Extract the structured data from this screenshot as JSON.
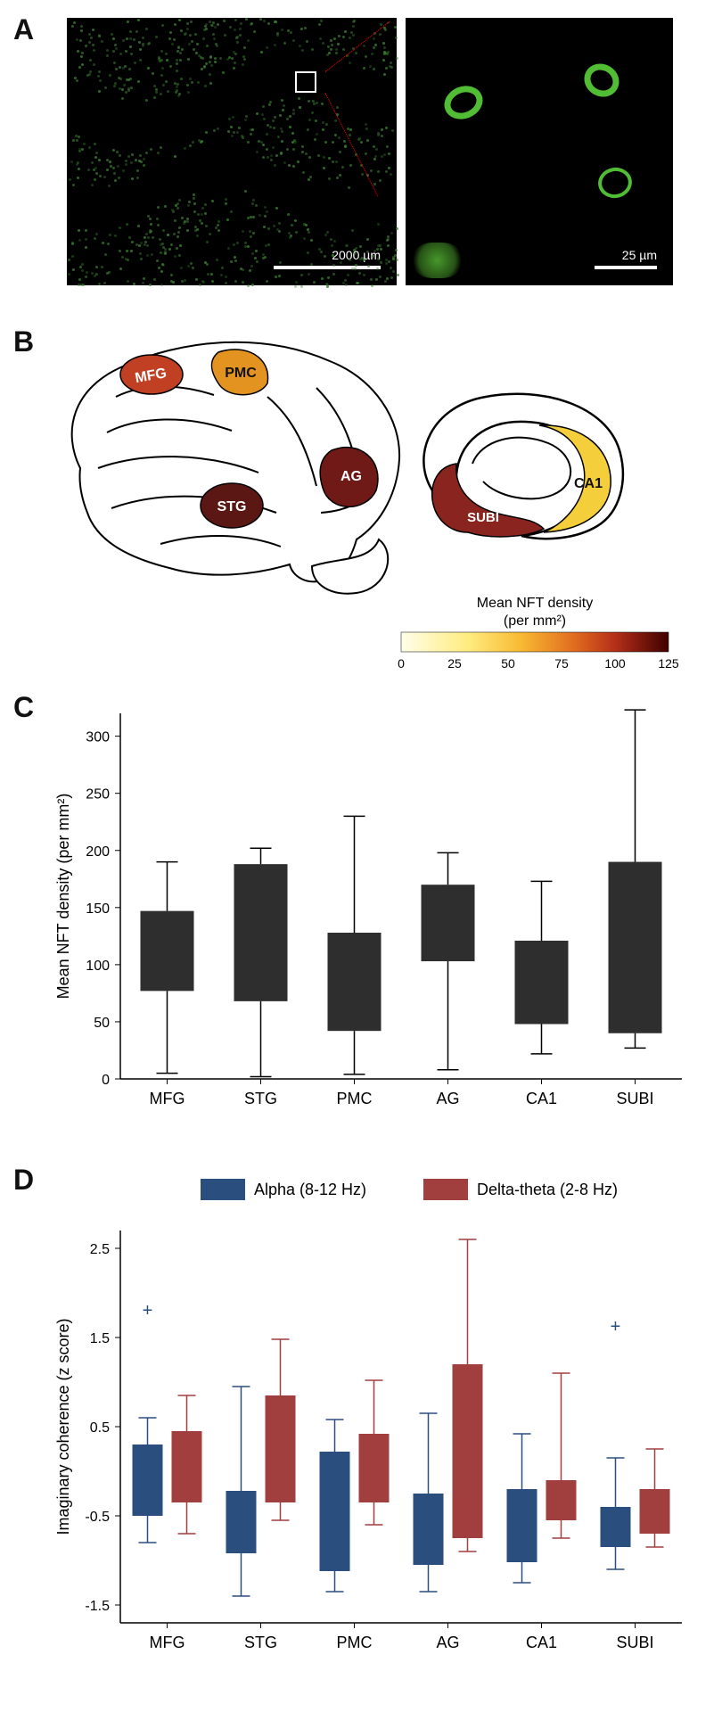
{
  "panelA": {
    "label": "A",
    "micro1_scalebar": "2000 µm",
    "micro2_scalebar": "25 µm",
    "bg_color": "#000000",
    "signal_color": "#59d23a"
  },
  "panelB": {
    "label": "B",
    "regions": [
      {
        "id": "MFG",
        "value": 95,
        "color": "#c14023"
      },
      {
        "id": "PMC",
        "value": 75,
        "color": "#e39420"
      },
      {
        "id": "STG",
        "value": 120,
        "color": "#5a1713"
      },
      {
        "id": "AG",
        "value": 118,
        "color": "#6f1a17"
      },
      {
        "id": "SUBI",
        "value": 110,
        "color": "#8a241f"
      },
      {
        "id": "CA1",
        "value": 60,
        "color": "#f4cf3b"
      }
    ],
    "colorbar": {
      "title": "Mean NFT density (per mm²)",
      "ticks": [
        0,
        25,
        50,
        75,
        100,
        125
      ],
      "stops": [
        {
          "pct": 0,
          "color": "#fffee9"
        },
        {
          "pct": 25,
          "color": "#feec80"
        },
        {
          "pct": 45,
          "color": "#f8b932"
        },
        {
          "pct": 65,
          "color": "#e06b1e"
        },
        {
          "pct": 80,
          "color": "#b52f19"
        },
        {
          "pct": 100,
          "color": "#3f0000"
        }
      ]
    }
  },
  "panelC": {
    "label": "C",
    "ytitle": "Mean NFT density (per mm²)",
    "ylim": [
      0,
      320
    ],
    "ytick_step": 50,
    "categories": [
      "MFG",
      "STG",
      "PMC",
      "AG",
      "CA1",
      "SUBI"
    ],
    "boxes": [
      {
        "q1": 77,
        "q3": 147,
        "wlow": 5,
        "whigh": 190
      },
      {
        "q1": 68,
        "q3": 188,
        "wlow": 2,
        "whigh": 202
      },
      {
        "q1": 42,
        "q3": 128,
        "wlow": 4,
        "whigh": 230
      },
      {
        "q1": 103,
        "q3": 170,
        "wlow": 8,
        "whigh": 198
      },
      {
        "q1": 48,
        "q3": 121,
        "wlow": 22,
        "whigh": 173
      },
      {
        "q1": 40,
        "q3": 190,
        "wlow": 27,
        "whigh": 323
      }
    ],
    "bar_color": "#2e2e2e",
    "whisker_color": "#000000"
  },
  "panelD": {
    "label": "D",
    "ytitle": "Imaginary coherence (z score)",
    "ylim": [
      -1.7,
      2.7
    ],
    "yticks": [
      -1.5,
      -0.5,
      0.5,
      1.5,
      2.5
    ],
    "categories": [
      "MFG",
      "STG",
      "PMC",
      "AG",
      "CA1",
      "SUBI"
    ],
    "series": [
      {
        "name": "Alpha (8-12 Hz)",
        "color": "#2a4f7e",
        "boxes": [
          {
            "q1": -0.5,
            "q3": 0.3,
            "wlow": -0.8,
            "whigh": 0.6,
            "outlier": 1.8
          },
          {
            "q1": -0.92,
            "q3": -0.22,
            "wlow": -1.4,
            "whigh": 0.95
          },
          {
            "q1": -1.12,
            "q3": 0.22,
            "wlow": -1.35,
            "whigh": 0.58
          },
          {
            "q1": -1.05,
            "q3": -0.25,
            "wlow": -1.35,
            "whigh": 0.65
          },
          {
            "q1": -1.02,
            "q3": -0.2,
            "wlow": -1.25,
            "whigh": 0.42
          },
          {
            "q1": -0.85,
            "q3": -0.4,
            "wlow": -1.1,
            "whigh": 0.15,
            "outlier": 1.62
          }
        ]
      },
      {
        "name": "Delta-theta (2-8 Hz)",
        "color": "#a13f3f",
        "boxes": [
          {
            "q1": -0.35,
            "q3": 0.45,
            "wlow": -0.7,
            "whigh": 0.85
          },
          {
            "q1": -0.35,
            "q3": 0.85,
            "wlow": -0.55,
            "whigh": 1.48
          },
          {
            "q1": -0.35,
            "q3": 0.42,
            "wlow": -0.6,
            "whigh": 1.02
          },
          {
            "q1": -0.75,
            "q3": 1.2,
            "wlow": -0.9,
            "whigh": 2.6
          },
          {
            "q1": -0.55,
            "q3": -0.1,
            "wlow": -0.75,
            "whigh": 1.1
          },
          {
            "q1": -0.7,
            "q3": -0.2,
            "wlow": -0.85,
            "whigh": 0.25
          }
        ]
      }
    ]
  }
}
